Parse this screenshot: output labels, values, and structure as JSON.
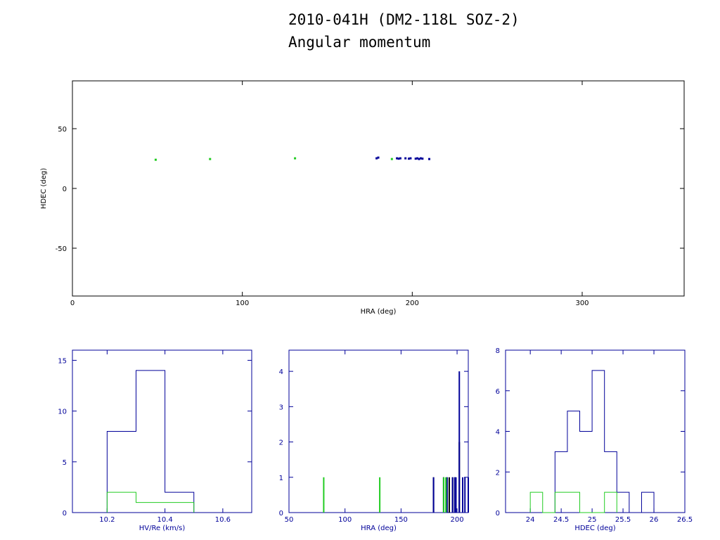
{
  "title_line1": "2010-041H (DM2-118L SOZ-2)",
  "title_line2": "Angular momentum",
  "colors": {
    "green": "#22cc22",
    "blue": "#000099",
    "black": "#000000"
  },
  "chart_data": [
    {
      "type": "scatter",
      "xlabel": "HRA (deg)",
      "ylabel": "HDEC (deg)",
      "xlim": [
        0,
        360
      ],
      "ylim": [
        -90,
        90
      ],
      "xticks": [
        0,
        100,
        200,
        300
      ],
      "yticks": [
        -50,
        0,
        50
      ],
      "series": [
        {
          "color": "green",
          "points": [
            [
              49,
              24
            ],
            [
              81,
              24.6
            ],
            [
              131,
              25.2
            ],
            [
              188,
              24.6
            ]
          ]
        },
        {
          "color": "blue",
          "points": [
            [
              179,
              25.2
            ],
            [
              180,
              25.8
            ],
            [
              191,
              25.2
            ],
            [
              192,
              24.9
            ],
            [
              193,
              25.2
            ],
            [
              196,
              25.2
            ],
            [
              198,
              24.9
            ],
            [
              199,
              25.2
            ],
            [
              202,
              24.9
            ],
            [
              203,
              25.2
            ],
            [
              204,
              24.6
            ],
            [
              205,
              25.2
            ],
            [
              206,
              24.9
            ],
            [
              210,
              24.6
            ]
          ]
        }
      ]
    },
    {
      "type": "histogram",
      "xlabel": "HV/Re (km/s)",
      "xlim": [
        10.08,
        10.7
      ],
      "ylim": [
        0,
        16
      ],
      "xticks": [
        10.2,
        10.4,
        10.6
      ],
      "yticks": [
        0,
        5,
        10,
        15
      ],
      "series": [
        {
          "color": "blue",
          "edges": [
            10.2,
            10.3,
            10.4,
            10.5
          ],
          "counts": [
            8,
            14,
            2
          ]
        },
        {
          "color": "green",
          "edges": [
            10.2,
            10.3,
            10.4,
            10.5
          ],
          "counts": [
            2,
            1,
            1
          ]
        }
      ]
    },
    {
      "type": "histogram",
      "xlabel": "HRA (deg)",
      "xlim": [
        50,
        210
      ],
      "ylim": [
        0,
        4.6
      ],
      "xticks": [
        50,
        100,
        150,
        200
      ],
      "yticks": [
        0,
        1,
        2,
        3,
        4
      ],
      "series": [
        {
          "color": "black",
          "bars": [
            [
              179,
              1
            ],
            [
              188,
              1
            ],
            [
              191,
              1
            ],
            [
              193,
              1
            ],
            [
              196,
              1
            ],
            [
              198,
              1
            ],
            [
              202,
              2
            ]
          ]
        },
        {
          "color": "blue",
          "bars": [
            [
              179,
              1
            ],
            [
              188,
              1
            ],
            [
              191,
              1
            ],
            [
              196,
              1
            ],
            [
              198,
              1
            ],
            [
              199,
              1
            ],
            [
              202,
              4
            ],
            [
              205,
              1
            ],
            [
              207,
              1
            ],
            [
              210,
              1
            ]
          ]
        },
        {
          "color": "green",
          "bars": [
            [
              81,
              1
            ],
            [
              131,
              1
            ],
            [
              188,
              1
            ],
            [
              190,
              1
            ]
          ]
        }
      ]
    },
    {
      "type": "histogram",
      "xlabel": "HDEC (deg)",
      "xlim": [
        23.6,
        26.5
      ],
      "ylim": [
        0,
        8
      ],
      "xticks": [
        24,
        24.5,
        25,
        25.5,
        26,
        26.5
      ],
      "yticks": [
        0,
        2,
        4,
        6,
        8
      ],
      "series": [
        {
          "color": "blue",
          "edges": [
            24.4,
            24.6,
            24.8,
            25.0,
            25.2,
            25.4,
            25.6,
            25.8,
            26.0
          ],
          "counts": [
            3,
            5,
            4,
            7,
            3,
            1,
            0,
            1
          ]
        },
        {
          "color": "green",
          "edges": [
            24.0,
            24.2,
            24.4,
            24.6,
            24.8,
            25.0,
            25.2,
            25.4
          ],
          "counts": [
            1,
            0,
            1,
            1,
            0,
            0,
            1
          ]
        }
      ]
    }
  ]
}
